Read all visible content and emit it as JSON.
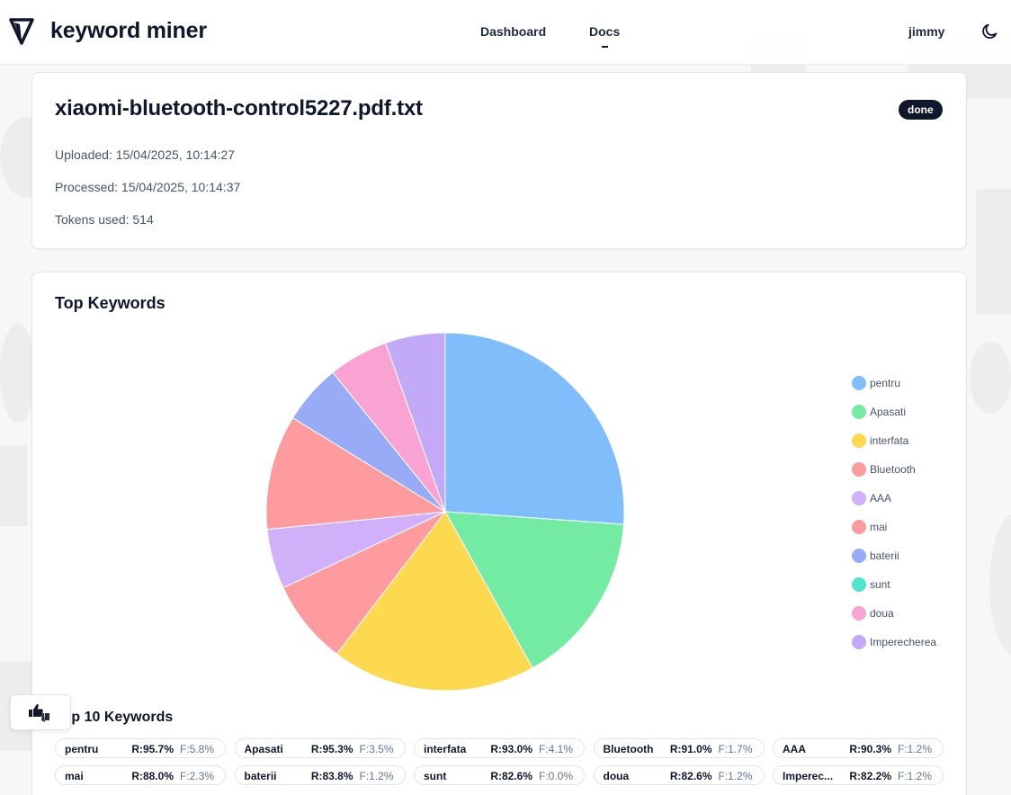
{
  "header": {
    "brand": "keyword miner",
    "nav": [
      {
        "label": "Dashboard"
      },
      {
        "label": "Docs"
      }
    ],
    "active_nav": "Docs",
    "user": "jimmy",
    "theme_icon": "moon-icon",
    "logo_icon": "triangle-logo-icon"
  },
  "document": {
    "title": "xiaomi-bluetooth-control5227.pdf.txt",
    "status": "done",
    "uploaded": "Uploaded: 15/04/2025, 10:14:27",
    "processed": "Processed: 15/04/2025, 10:14:37",
    "tokens": "Tokens used: 514"
  },
  "keywords_card": {
    "title": "Top Keywords",
    "top10_title": "Top 10 Keywords"
  },
  "chart_data": {
    "type": "pie",
    "labels": [
      "pentru",
      "Apasati",
      "interfata",
      "Bluetooth",
      "AAA",
      "mai",
      "baterii",
      "sunt",
      "doua",
      "Imperecherea"
    ],
    "values": [
      5.8,
      3.5,
      4.1,
      1.7,
      1.2,
      2.3,
      1.2,
      0.0,
      1.2,
      1.2
    ],
    "colors": [
      "#7fbefa",
      "#74eba3",
      "#fdd94f",
      "#fd9b9e",
      "#d0b0f9",
      "#fd9b9e",
      "#97abf6",
      "#4ee6cc",
      "#f9a3d2",
      "#c2aaf7"
    ],
    "legend_position": "right"
  },
  "top10": [
    {
      "word": "pentru",
      "word_display": "pentru",
      "r": "R:95.7%",
      "f": "F:5.8%"
    },
    {
      "word": "Apasati",
      "word_display": "Apasati",
      "r": "R:95.3%",
      "f": "F:3.5%"
    },
    {
      "word": "interfata",
      "word_display": "interfata",
      "r": "R:93.0%",
      "f": "F:4.1%"
    },
    {
      "word": "Bluetooth",
      "word_display": "Bluetooth",
      "r": "R:91.0%",
      "f": "F:1.7%"
    },
    {
      "word": "AAA",
      "word_display": "AAA",
      "r": "R:90.3%",
      "f": "F:1.2%"
    },
    {
      "word": "mai",
      "word_display": "mai",
      "r": "R:88.0%",
      "f": "F:2.3%"
    },
    {
      "word": "baterii",
      "word_display": "baterii",
      "r": "R:83.8%",
      "f": "F:1.2%"
    },
    {
      "word": "sunt",
      "word_display": "sunt",
      "r": "R:82.6%",
      "f": "F:0.0%"
    },
    {
      "word": "doua",
      "word_display": "doua",
      "r": "R:82.6%",
      "f": "F:1.2%"
    },
    {
      "word": "Imperecherea",
      "word_display": "Imperec...",
      "r": "R:82.2%",
      "f": "F:1.2%"
    }
  ],
  "feedback_icon": "thumbs-up-down-icon"
}
